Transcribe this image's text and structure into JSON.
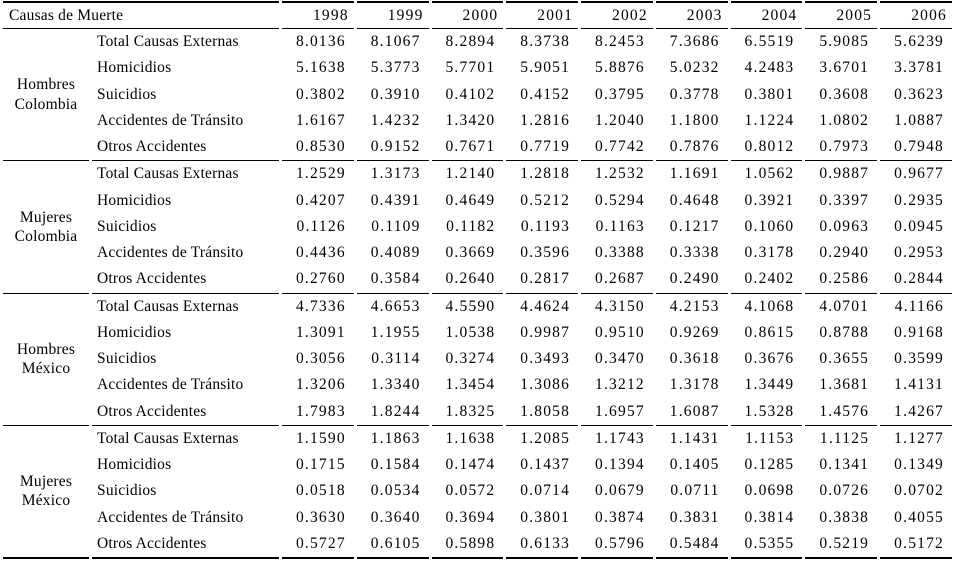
{
  "table": {
    "title": "Causas de Muerte",
    "years": [
      "1998",
      "1999",
      "2000",
      "2001",
      "2002",
      "2003",
      "2004",
      "2005",
      "2006"
    ],
    "groups": [
      {
        "label": "Hombres\nColombia",
        "rows": [
          {
            "cause": "Total Causas Externas",
            "values": [
              "8.0136",
              "8.1067",
              "8.2894",
              "8.3738",
              "8.2453",
              "7.3686",
              "6.5519",
              "5.9085",
              "5.6239"
            ]
          },
          {
            "cause": "Homicidios",
            "values": [
              "5.1638",
              "5.3773",
              "5.7701",
              "5.9051",
              "5.8876",
              "5.0232",
              "4.2483",
              "3.6701",
              "3.3781"
            ]
          },
          {
            "cause": "Suicidios",
            "values": [
              "0.3802",
              "0.3910",
              "0.4102",
              "0.4152",
              "0.3795",
              "0.3778",
              "0.3801",
              "0.3608",
              "0.3623"
            ]
          },
          {
            "cause": "Accidentes de Tránsito",
            "values": [
              "1.6167",
              "1.4232",
              "1.3420",
              "1.2816",
              "1.2040",
              "1.1800",
              "1.1224",
              "1.0802",
              "1.0887"
            ]
          },
          {
            "cause": "Otros Accidentes",
            "values": [
              "0.8530",
              "0.9152",
              "0.7671",
              "0.7719",
              "0.7742",
              "0.7876",
              "0.8012",
              "0.7973",
              "0.7948"
            ]
          }
        ]
      },
      {
        "label": "Mujeres\nColombia",
        "rows": [
          {
            "cause": "Total Causas Externas",
            "values": [
              "1.2529",
              "1.3173",
              "1.2140",
              "1.2818",
              "1.2532",
              "1.1691",
              "1.0562",
              "0.9887",
              "0.9677"
            ]
          },
          {
            "cause": "Homicidios",
            "values": [
              "0.4207",
              "0.4391",
              "0.4649",
              "0.5212",
              "0.5294",
              "0.4648",
              "0.3921",
              "0.3397",
              "0.2935"
            ]
          },
          {
            "cause": "Suicidios",
            "values": [
              "0.1126",
              "0.1109",
              "0.1182",
              "0.1193",
              "0.1163",
              "0.1217",
              "0.1060",
              "0.0963",
              "0.0945"
            ]
          },
          {
            "cause": "Accidentes de Tránsito",
            "values": [
              "0.4436",
              "0.4089",
              "0.3669",
              "0.3596",
              "0.3388",
              "0.3338",
              "0.3178",
              "0.2940",
              "0.2953"
            ]
          },
          {
            "cause": "Otros Accidentes",
            "values": [
              "0.2760",
              "0.3584",
              "0.2640",
              "0.2817",
              "0.2687",
              "0.2490",
              "0.2402",
              "0.2586",
              "0.2844"
            ]
          }
        ]
      },
      {
        "label": "Hombres\nMéxico",
        "rows": [
          {
            "cause": "Total Causas Externas",
            "values": [
              "4.7336",
              "4.6653",
              "4.5590",
              "4.4624",
              "4.3150",
              "4.2153",
              "4.1068",
              "4.0701",
              "4.1166"
            ]
          },
          {
            "cause": "Homicidios",
            "values": [
              "1.3091",
              "1.1955",
              "1.0538",
              "0.9987",
              "0.9510",
              "0.9269",
              "0.8615",
              "0.8788",
              "0.9168"
            ]
          },
          {
            "cause": "Suicidios",
            "values": [
              "0.3056",
              "0.3114",
              "0.3274",
              "0.3493",
              "0.3470",
              "0.3618",
              "0.3676",
              "0.3655",
              "0.3599"
            ]
          },
          {
            "cause": "Accidentes de Tránsito",
            "values": [
              "1.3206",
              "1.3340",
              "1.3454",
              "1.3086",
              "1.3212",
              "1.3178",
              "1.3449",
              "1.3681",
              "1.4131"
            ]
          },
          {
            "cause": "Otros Accidentes",
            "values": [
              "1.7983",
              "1.8244",
              "1.8325",
              "1.8058",
              "1.6957",
              "1.6087",
              "1.5328",
              "1.4576",
              "1.4267"
            ]
          }
        ]
      },
      {
        "label": "Mujeres\nMéxico",
        "rows": [
          {
            "cause": "Total Causas Externas",
            "values": [
              "1.1590",
              "1.1863",
              "1.1638",
              "1.2085",
              "1.1743",
              "1.1431",
              "1.1153",
              "1.1125",
              "1.1277"
            ]
          },
          {
            "cause": "Homicidios",
            "values": [
              "0.1715",
              "0.1584",
              "0.1474",
              "0.1437",
              "0.1394",
              "0.1405",
              "0.1285",
              "0.1341",
              "0.1349"
            ]
          },
          {
            "cause": "Suicidios",
            "values": [
              "0.0518",
              "0.0534",
              "0.0572",
              "0.0714",
              "0.0679",
              "0.0711",
              "0.0698",
              "0.0726",
              "0.0702"
            ]
          },
          {
            "cause": "Accidentes de Tránsito",
            "values": [
              "0.3630",
              "0.3640",
              "0.3694",
              "0.3801",
              "0.3874",
              "0.3831",
              "0.3814",
              "0.3838",
              "0.4055"
            ]
          },
          {
            "cause": "Otros Accidentes",
            "values": [
              "0.5727",
              "0.6105",
              "0.5898",
              "0.6133",
              "0.5796",
              "0.5484",
              "0.5355",
              "0.5219",
              "0.5172"
            ]
          }
        ]
      }
    ]
  }
}
